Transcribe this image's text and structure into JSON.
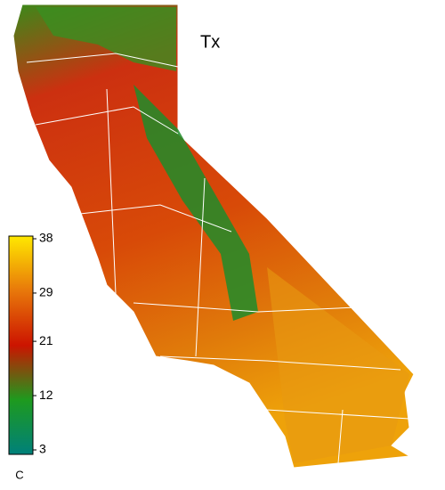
{
  "title": "Tx",
  "colorbar": {
    "lim": [
      3,
      38
    ],
    "ticks": [
      38,
      29,
      21,
      12,
      3
    ],
    "unit": "C",
    "colors": [
      "#00807a",
      "#1e9a1e",
      "#cc1400",
      "#e8780a",
      "#ffe800"
    ]
  }
}
